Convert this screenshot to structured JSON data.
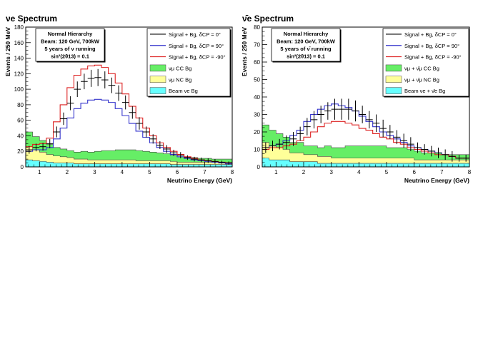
{
  "chart_data": [
    {
      "type": "line",
      "title": "νe Spectrum",
      "xlabel": "Neutrino Energy (GeV)",
      "ylabel": "Events / 250 MeV",
      "xlim": [
        0.5,
        8
      ],
      "ylim": [
        0,
        180
      ],
      "xticks": [
        "1",
        "2",
        "3",
        "4",
        "5",
        "6",
        "7",
        "8"
      ],
      "yticks": [
        "0",
        "20",
        "40",
        "60",
        "80",
        "100",
        "120",
        "140",
        "160",
        "180"
      ],
      "info_lines": [
        "Normal Hierarchy",
        "Beam: 120 GeV, 700kW",
        "5 years of ν running",
        "sin²(2θ13) = 0.1"
      ],
      "legend": {
        "position": "top-right",
        "entries": [
          "Signal + Bg, δCP = 0°",
          "Signal + Bg, δCP = 90°",
          "Signal + Bg, δCP = -90°",
          "νμ CC Bg",
          "νμ NC Bg",
          "Beam νe Bg"
        ]
      },
      "bin_edges": [
        0.5,
        0.75,
        1.0,
        1.25,
        1.5,
        1.75,
        2.0,
        2.25,
        2.5,
        2.75,
        3.0,
        3.25,
        3.5,
        3.75,
        4.0,
        4.25,
        4.5,
        4.75,
        5.0,
        5.25,
        5.5,
        5.75,
        6.0,
        6.25,
        6.5,
        6.75,
        7.0,
        7.25,
        7.5,
        7.75,
        8.0
      ],
      "series": [
        {
          "name": "Signal + Bg, δCP = 0°",
          "color": "#000000",
          "style": "points",
          "values": [
            22,
            25,
            26,
            30,
            45,
            62,
            82,
            100,
            110,
            114,
            115,
            112,
            105,
            95,
            83,
            70,
            56,
            45,
            36,
            28,
            23,
            18,
            15,
            12,
            10,
            9,
            8,
            7,
            6,
            5
          ],
          "errors": [
            5,
            5,
            5,
            6,
            7,
            8,
            9,
            10,
            10,
            11,
            11,
            11,
            10,
            10,
            9,
            8,
            8,
            7,
            6,
            5,
            5,
            4,
            4,
            3,
            3,
            3,
            3,
            3,
            2,
            2
          ]
        },
        {
          "name": "Signal + Bg, δCP = 90°",
          "color": "#3333cc",
          "style": "step",
          "values": [
            20,
            22,
            22,
            25,
            36,
            50,
            63,
            75,
            82,
            86,
            87,
            86,
            83,
            75,
            66,
            56,
            46,
            38,
            31,
            25,
            20,
            16,
            13,
            11,
            9,
            8,
            7,
            6,
            5,
            4
          ]
        },
        {
          "name": "Signal + Bg, δCP = -90°",
          "color": "#dd2222",
          "style": "step",
          "values": [
            26,
            29,
            30,
            37,
            58,
            80,
            102,
            118,
            126,
            130,
            131,
            128,
            120,
            108,
            94,
            78,
            63,
            50,
            40,
            31,
            25,
            20,
            16,
            13,
            11,
            9,
            8,
            7,
            6,
            5
          ]
        }
      ],
      "backgrounds": [
        {
          "name": "Beam νe Bg",
          "color": "#66ffff",
          "values": [
            9,
            8,
            7,
            6,
            5,
            5,
            5,
            4,
            4,
            4,
            4,
            4,
            4,
            4,
            4,
            4,
            4,
            4,
            4,
            4,
            4,
            3,
            3,
            3,
            3,
            3,
            3,
            3,
            3,
            3
          ]
        },
        {
          "name": "νμ NC Bg",
          "color": "#ffff99",
          "values": [
            17,
            14,
            12,
            10,
            9,
            8,
            7,
            6,
            6,
            5,
            5,
            5,
            5,
            5,
            5,
            5,
            4,
            4,
            4,
            4,
            4,
            4,
            3,
            3,
            3,
            3,
            3,
            3,
            3,
            3
          ]
        },
        {
          "name": "νμ CC Bg",
          "color": "#66ee66",
          "values": [
            19,
            17,
            15,
            13,
            11,
            10,
            9,
            9,
            10,
            10,
            11,
            12,
            12,
            13,
            13,
            13,
            13,
            12,
            11,
            10,
            9,
            8,
            7,
            6,
            6,
            5,
            5,
            4,
            4,
            4
          ]
        }
      ]
    },
    {
      "type": "line",
      "title": "ν̄e Spectrum",
      "xlabel": "Neutrino Energy (GeV)",
      "ylabel": "Events / 250 MeV",
      "xlim": [
        0.5,
        8
      ],
      "ylim": [
        0,
        80
      ],
      "xticks": [
        "1",
        "2",
        "3",
        "4",
        "5",
        "6",
        "7",
        "8"
      ],
      "yticks": [
        "0",
        "10",
        "20",
        "30",
        "40",
        "50",
        "60",
        "70",
        "80"
      ],
      "info_lines": [
        "Normal Hierarchy",
        "Beam: 120 GeV, 700kW",
        "5 years of ν̄ running",
        "sin²(2θ13) = 0.1"
      ],
      "legend": {
        "position": "top-right",
        "entries": [
          "Signal + Bg, δCP = 0°",
          "Signal + Bg, δCP = 90°",
          "Signal + Bg, δCP = -90°",
          "νμ + ν̄μ CC Bg",
          "νμ + ν̄μ NC Bg",
          "Beam νe + ν̄e Bg"
        ]
      },
      "bin_edges": [
        0.5,
        0.75,
        1.0,
        1.25,
        1.5,
        1.75,
        2.0,
        2.25,
        2.5,
        2.75,
        3.0,
        3.25,
        3.5,
        3.75,
        4.0,
        4.25,
        4.5,
        4.75,
        5.0,
        5.25,
        5.5,
        5.75,
        6.0,
        6.25,
        6.5,
        6.75,
        7.0,
        7.25,
        7.5,
        7.75,
        8.0
      ],
      "series": [
        {
          "name": "Signal + Bg, δCP = 0°",
          "color": "#000000",
          "style": "points",
          "values": [
            11,
            12,
            13,
            14,
            16,
            19,
            23,
            27,
            30,
            32,
            33,
            33,
            33,
            32,
            30,
            27,
            25,
            22,
            20,
            17,
            15,
            13,
            11,
            10,
            9,
            8,
            7,
            6,
            5,
            5
          ],
          "errors": [
            3,
            3,
            3,
            4,
            4,
            4,
            5,
            5,
            5,
            5,
            6,
            6,
            6,
            6,
            5,
            5,
            5,
            5,
            4,
            4,
            4,
            4,
            3,
            3,
            3,
            3,
            3,
            3,
            2,
            2
          ]
        },
        {
          "name": "Signal + Bg, δCP = 90°",
          "color": "#3333cc",
          "style": "step",
          "values": [
            11,
            12,
            13,
            15,
            18,
            21,
            26,
            30,
            33,
            35,
            36,
            35,
            34,
            32,
            29,
            26,
            23,
            20,
            18,
            16,
            14,
            12,
            11,
            10,
            9,
            8,
            7,
            6,
            5,
            5
          ]
        },
        {
          "name": "Signal + Bg, δCP = -90°",
          "color": "#dd2222",
          "style": "step",
          "values": [
            10,
            11,
            11,
            12,
            13,
            15,
            17,
            20,
            23,
            25,
            26,
            26,
            25,
            24,
            22,
            21,
            19,
            17,
            16,
            14,
            13,
            11,
            10,
            9,
            8,
            7,
            7,
            6,
            5,
            5
          ]
        }
      ],
      "backgrounds": [
        {
          "name": "Beam νe + ν̄e Bg",
          "color": "#66ffff",
          "values": [
            5,
            4,
            4,
            4,
            3,
            3,
            3,
            3,
            2,
            2,
            2,
            2,
            2,
            2,
            2,
            2,
            2,
            2,
            2,
            2,
            2,
            2,
            2,
            2,
            2,
            2,
            2,
            2,
            2,
            2
          ]
        },
        {
          "name": "νμ + ν̄μ NC Bg",
          "color": "#ffff99",
          "values": [
            9,
            8,
            7,
            6,
            5,
            5,
            4,
            4,
            4,
            4,
            3,
            3,
            3,
            3,
            3,
            3,
            3,
            3,
            3,
            3,
            3,
            3,
            2,
            2,
            2,
            2,
            2,
            2,
            2,
            2
          ]
        },
        {
          "name": "νμ + ν̄μ CC Bg",
          "color": "#66ee66",
          "values": [
            10,
            9,
            8,
            7,
            6,
            6,
            5,
            5,
            5,
            6,
            6,
            6,
            7,
            7,
            7,
            7,
            7,
            7,
            6,
            6,
            6,
            5,
            5,
            4,
            4,
            4,
            3,
            3,
            3,
            3
          ]
        }
      ]
    }
  ]
}
